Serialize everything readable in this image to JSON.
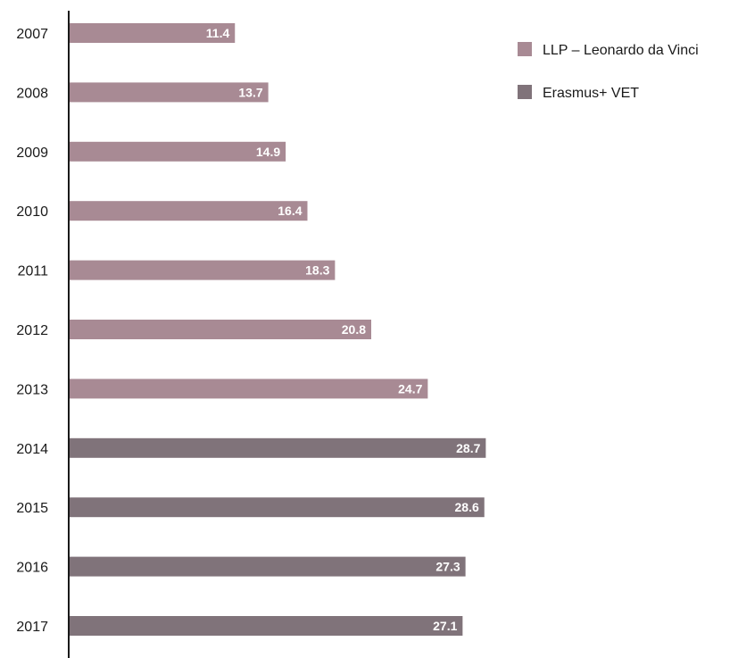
{
  "chart_data": {
    "type": "bar",
    "orientation": "horizontal",
    "categories": [
      "2007",
      "2008",
      "2009",
      "2010",
      "2011",
      "2012",
      "2013",
      "2014",
      "2015",
      "2016",
      "2017"
    ],
    "values": [
      11.4,
      13.7,
      14.9,
      16.4,
      18.3,
      20.8,
      24.7,
      28.7,
      28.6,
      27.3,
      27.1
    ],
    "value_labels": [
      "11.4",
      "13.7",
      "14.9",
      "16.4",
      "18.3",
      "20.8",
      "24.7",
      "28.7",
      "28.6",
      "27.3",
      "27.1"
    ],
    "series": [
      {
        "name": "LLP – Leonardo da Vinci",
        "color": "#a88a94",
        "categories": [
          "2007",
          "2008",
          "2009",
          "2010",
          "2011",
          "2012",
          "2013"
        ]
      },
      {
        "name": "Erasmus+ VET",
        "color": "#80737a",
        "categories": [
          "2014",
          "2015",
          "2016",
          "2017"
        ]
      }
    ],
    "title": "",
    "xlabel": "",
    "ylabel": "",
    "xlim": [
      0,
      30
    ],
    "grid": false,
    "legend_position": "top-right"
  }
}
